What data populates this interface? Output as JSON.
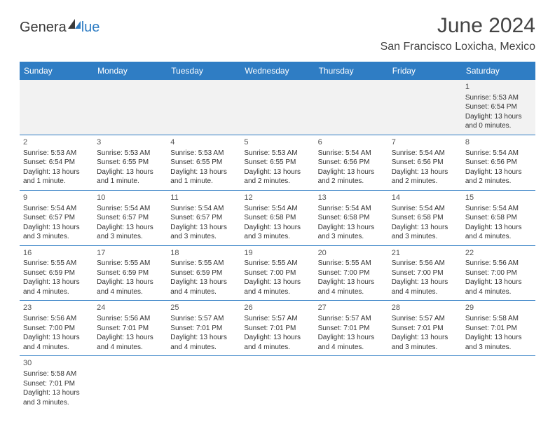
{
  "logo": {
    "textA": "Genera",
    "textB": "lue"
  },
  "title": "June 2024",
  "location": "San Francisco Loxicha, Mexico",
  "colors": {
    "header_bg": "#2f7dc4",
    "header_text": "#ffffff",
    "row_divider": "#2f7dc4",
    "empty_bg": "#f2f2f2",
    "text": "#333333"
  },
  "dayHeaders": [
    "Sunday",
    "Monday",
    "Tuesday",
    "Wednesday",
    "Thursday",
    "Friday",
    "Saturday"
  ],
  "weeks": [
    [
      null,
      null,
      null,
      null,
      null,
      null,
      {
        "n": "1",
        "sunrise": "5:53 AM",
        "sunset": "6:54 PM",
        "daylight": "13 hours and 0 minutes."
      }
    ],
    [
      {
        "n": "2",
        "sunrise": "5:53 AM",
        "sunset": "6:54 PM",
        "daylight": "13 hours and 1 minute."
      },
      {
        "n": "3",
        "sunrise": "5:53 AM",
        "sunset": "6:55 PM",
        "daylight": "13 hours and 1 minute."
      },
      {
        "n": "4",
        "sunrise": "5:53 AM",
        "sunset": "6:55 PM",
        "daylight": "13 hours and 1 minute."
      },
      {
        "n": "5",
        "sunrise": "5:53 AM",
        "sunset": "6:55 PM",
        "daylight": "13 hours and 2 minutes."
      },
      {
        "n": "6",
        "sunrise": "5:54 AM",
        "sunset": "6:56 PM",
        "daylight": "13 hours and 2 minutes."
      },
      {
        "n": "7",
        "sunrise": "5:54 AM",
        "sunset": "6:56 PM",
        "daylight": "13 hours and 2 minutes."
      },
      {
        "n": "8",
        "sunrise": "5:54 AM",
        "sunset": "6:56 PM",
        "daylight": "13 hours and 2 minutes."
      }
    ],
    [
      {
        "n": "9",
        "sunrise": "5:54 AM",
        "sunset": "6:57 PM",
        "daylight": "13 hours and 3 minutes."
      },
      {
        "n": "10",
        "sunrise": "5:54 AM",
        "sunset": "6:57 PM",
        "daylight": "13 hours and 3 minutes."
      },
      {
        "n": "11",
        "sunrise": "5:54 AM",
        "sunset": "6:57 PM",
        "daylight": "13 hours and 3 minutes."
      },
      {
        "n": "12",
        "sunrise": "5:54 AM",
        "sunset": "6:58 PM",
        "daylight": "13 hours and 3 minutes."
      },
      {
        "n": "13",
        "sunrise": "5:54 AM",
        "sunset": "6:58 PM",
        "daylight": "13 hours and 3 minutes."
      },
      {
        "n": "14",
        "sunrise": "5:54 AM",
        "sunset": "6:58 PM",
        "daylight": "13 hours and 3 minutes."
      },
      {
        "n": "15",
        "sunrise": "5:54 AM",
        "sunset": "6:58 PM",
        "daylight": "13 hours and 4 minutes."
      }
    ],
    [
      {
        "n": "16",
        "sunrise": "5:55 AM",
        "sunset": "6:59 PM",
        "daylight": "13 hours and 4 minutes."
      },
      {
        "n": "17",
        "sunrise": "5:55 AM",
        "sunset": "6:59 PM",
        "daylight": "13 hours and 4 minutes."
      },
      {
        "n": "18",
        "sunrise": "5:55 AM",
        "sunset": "6:59 PM",
        "daylight": "13 hours and 4 minutes."
      },
      {
        "n": "19",
        "sunrise": "5:55 AM",
        "sunset": "7:00 PM",
        "daylight": "13 hours and 4 minutes."
      },
      {
        "n": "20",
        "sunrise": "5:55 AM",
        "sunset": "7:00 PM",
        "daylight": "13 hours and 4 minutes."
      },
      {
        "n": "21",
        "sunrise": "5:56 AM",
        "sunset": "7:00 PM",
        "daylight": "13 hours and 4 minutes."
      },
      {
        "n": "22",
        "sunrise": "5:56 AM",
        "sunset": "7:00 PM",
        "daylight": "13 hours and 4 minutes."
      }
    ],
    [
      {
        "n": "23",
        "sunrise": "5:56 AM",
        "sunset": "7:00 PM",
        "daylight": "13 hours and 4 minutes."
      },
      {
        "n": "24",
        "sunrise": "5:56 AM",
        "sunset": "7:01 PM",
        "daylight": "13 hours and 4 minutes."
      },
      {
        "n": "25",
        "sunrise": "5:57 AM",
        "sunset": "7:01 PM",
        "daylight": "13 hours and 4 minutes."
      },
      {
        "n": "26",
        "sunrise": "5:57 AM",
        "sunset": "7:01 PM",
        "daylight": "13 hours and 4 minutes."
      },
      {
        "n": "27",
        "sunrise": "5:57 AM",
        "sunset": "7:01 PM",
        "daylight": "13 hours and 4 minutes."
      },
      {
        "n": "28",
        "sunrise": "5:57 AM",
        "sunset": "7:01 PM",
        "daylight": "13 hours and 3 minutes."
      },
      {
        "n": "29",
        "sunrise": "5:58 AM",
        "sunset": "7:01 PM",
        "daylight": "13 hours and 3 minutes."
      }
    ],
    [
      {
        "n": "30",
        "sunrise": "5:58 AM",
        "sunset": "7:01 PM",
        "daylight": "13 hours and 3 minutes."
      },
      null,
      null,
      null,
      null,
      null,
      null
    ]
  ],
  "labels": {
    "sunrise": "Sunrise:",
    "sunset": "Sunset:",
    "daylight": "Daylight:"
  }
}
